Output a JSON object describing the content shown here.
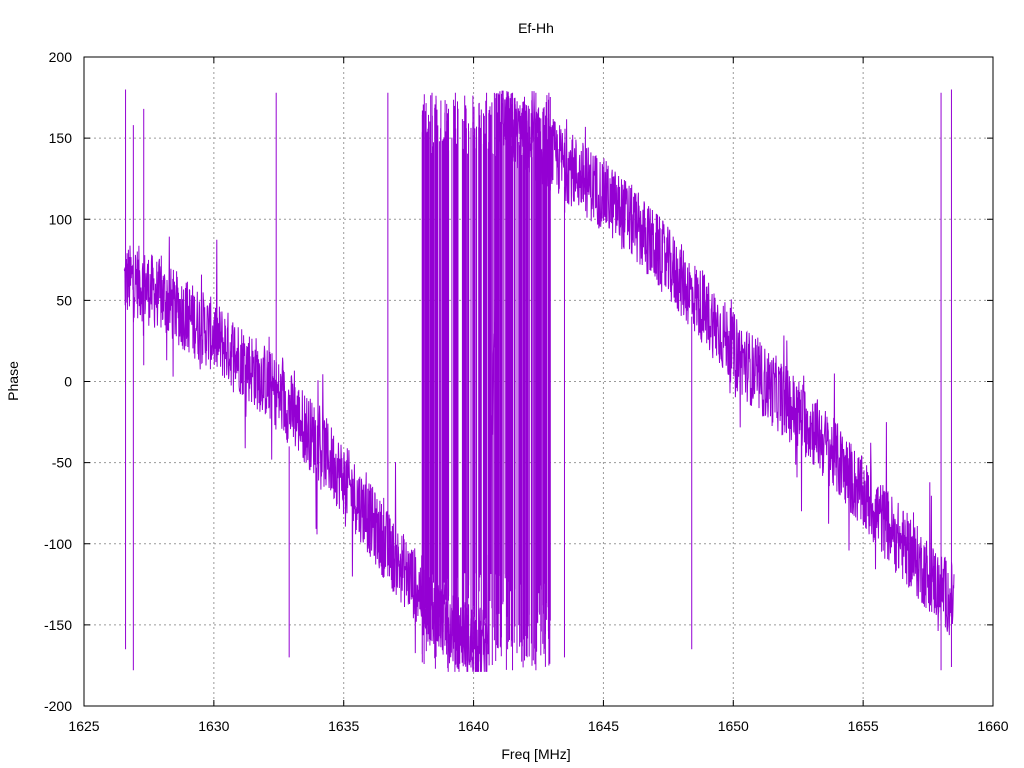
{
  "chart_data": {
    "type": "line",
    "title": "Ef-Hh",
    "xlabel": "Freq [MHz]",
    "ylabel": "Phase",
    "xlim": [
      1625,
      1660
    ],
    "ylim": [
      -200,
      200
    ],
    "x_ticks": [
      1625,
      1630,
      1635,
      1640,
      1645,
      1650,
      1655,
      1660
    ],
    "y_ticks": [
      -200,
      -150,
      -100,
      -50,
      0,
      50,
      100,
      150,
      200
    ],
    "grid": true,
    "legend": "none",
    "line_color": "#9400d3",
    "series": [
      {
        "x": [
          1626.55,
          1627,
          1628,
          1629,
          1630,
          1631,
          1632,
          1633,
          1634,
          1635,
          1636,
          1637,
          1638,
          1639,
          1640,
          1640.5,
          1641,
          1642,
          1643,
          1644,
          1645,
          1646,
          1647,
          1648,
          1649,
          1650,
          1651,
          1652,
          1653,
          1654,
          1655,
          1656,
          1657,
          1658,
          1658.5
        ],
        "values": [
          62,
          62,
          52,
          40,
          28,
          15,
          0,
          -18,
          -38,
          -60,
          -85,
          -110,
          -130,
          -150,
          -160,
          -163,
          160,
          150,
          140,
          128,
          115,
          100,
          82,
          62,
          42,
          20,
          2,
          -12,
          -28,
          -48,
          -70,
          -90,
          -110,
          -128,
          -135
        ]
      }
    ],
    "spikes": [
      {
        "x": 1626.6,
        "top": 180,
        "bottom": -165
      },
      {
        "x": 1626.9,
        "top": 158,
        "bottom": -178
      },
      {
        "x": 1627.3,
        "top": 168,
        "bottom": 10
      },
      {
        "x": 1632.4,
        "top": 178,
        "bottom": -5
      },
      {
        "x": 1632.9,
        "top": -40,
        "bottom": -170
      },
      {
        "x": 1636.7,
        "top": 178,
        "bottom": -120
      },
      {
        "x": 1638.4,
        "top": 178,
        "bottom": -160
      },
      {
        "x": 1639.3,
        "top": 178,
        "bottom": -170
      },
      {
        "x": 1640.5,
        "top": 178,
        "bottom": -178
      },
      {
        "x": 1641.5,
        "top": 178,
        "bottom": -178
      },
      {
        "x": 1642.4,
        "top": 178,
        "bottom": -178
      },
      {
        "x": 1642.9,
        "top": 178,
        "bottom": -175
      },
      {
        "x": 1643.5,
        "top": 120,
        "bottom": -170
      },
      {
        "x": 1648.4,
        "top": 40,
        "bottom": -165
      },
      {
        "x": 1658.0,
        "top": 178,
        "bottom": -178
      },
      {
        "x": 1658.4,
        "top": 180,
        "bottom": -176
      }
    ],
    "scatter_band": [
      {
        "from": 1638.0,
        "to": 1643.0,
        "low": -178,
        "high": 178,
        "density": 0.9
      }
    ]
  }
}
